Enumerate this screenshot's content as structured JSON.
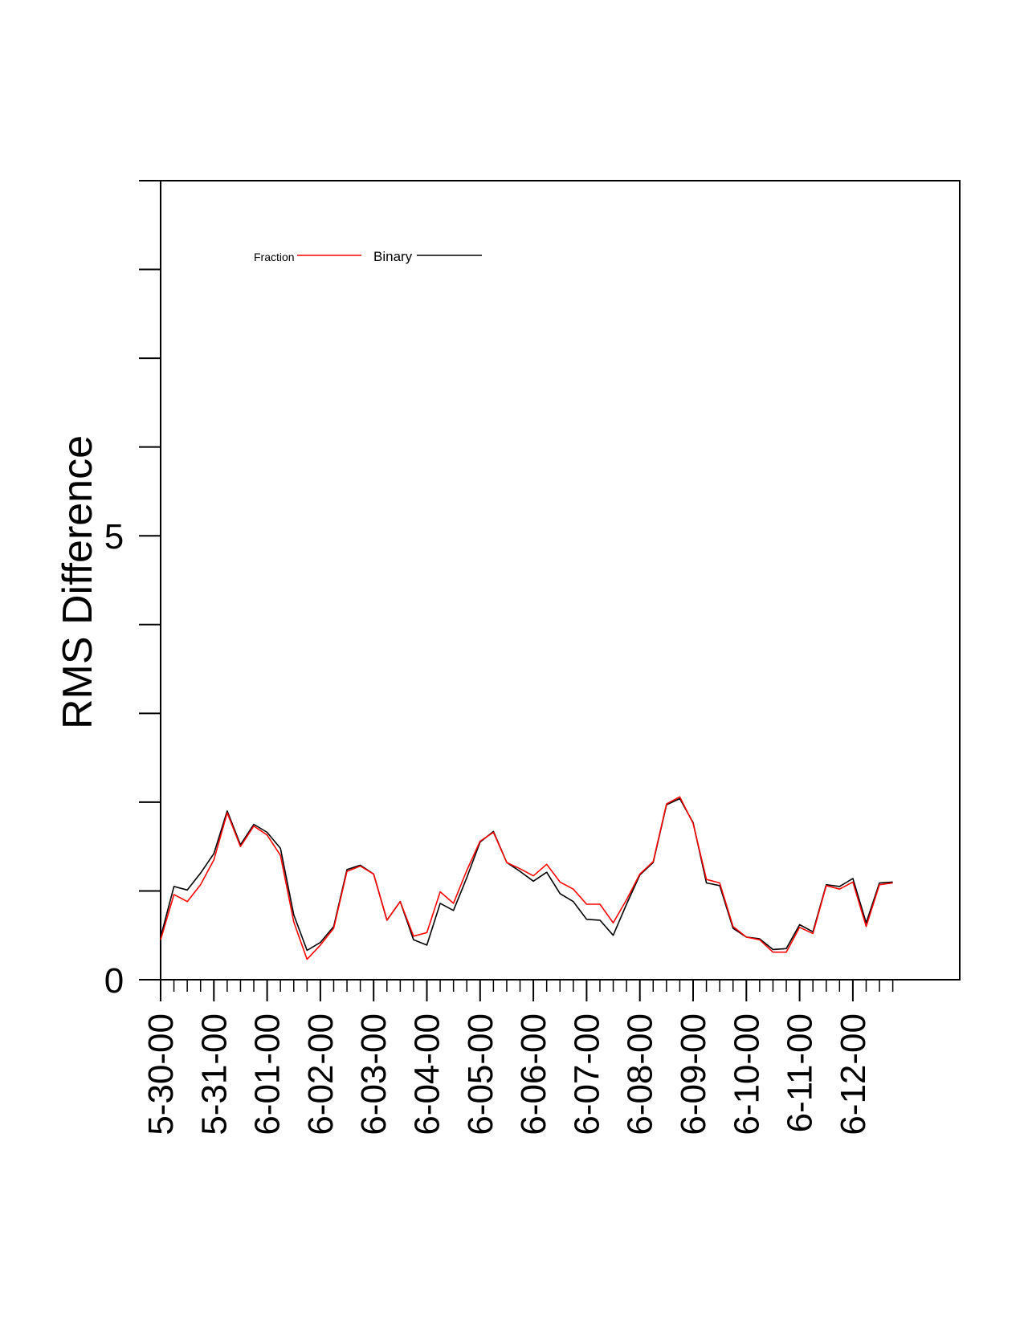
{
  "chart_data": {
    "type": "line",
    "ylabel": "RMS Difference",
    "ylim": [
      0,
      9
    ],
    "ytick_labels": [
      {
        "value": 0,
        "label": "0"
      },
      {
        "value": 5,
        "label": "5"
      }
    ],
    "x_tick_labels": [
      "5-30-00",
      "5-31-00",
      "6-01-00",
      "6-02-00",
      "6-03-00",
      "6-04-00",
      "6-05-00",
      "6-06-00",
      "6-07-00",
      "6-08-00",
      "6-09-00",
      "6-10-00",
      "6-11-00",
      "6-12-00"
    ],
    "points_per_day": 4,
    "legend": {
      "position": "top-left"
    },
    "series": [
      {
        "name": "Fraction",
        "color": "#ff0000",
        "values": [
          0.45,
          0.96,
          0.88,
          1.07,
          1.35,
          1.88,
          1.5,
          1.73,
          1.63,
          1.4,
          0.65,
          0.23,
          0.39,
          0.58,
          1.22,
          1.28,
          1.19,
          0.67,
          0.88,
          0.49,
          0.53,
          0.99,
          0.86,
          1.23,
          1.56,
          1.66,
          1.32,
          1.25,
          1.17,
          1.3,
          1.1,
          1.02,
          0.85,
          0.85,
          0.64,
          0.9,
          1.19,
          1.33,
          1.98,
          2.06,
          1.76,
          1.13,
          1.09,
          0.6,
          0.48,
          0.45,
          0.31,
          0.31,
          0.59,
          0.52,
          1.06,
          1.02,
          1.1,
          0.6,
          1.07,
          1.09
        ]
      },
      {
        "name": "Binary",
        "color": "#000000",
        "values": [
          0.48,
          1.05,
          1.01,
          1.2,
          1.42,
          1.9,
          1.52,
          1.75,
          1.66,
          1.48,
          0.73,
          0.33,
          0.42,
          0.6,
          1.24,
          1.29,
          1.19,
          0.67,
          0.88,
          0.45,
          0.39,
          0.86,
          0.78,
          1.15,
          1.55,
          1.67,
          1.32,
          1.22,
          1.11,
          1.21,
          0.97,
          0.88,
          0.68,
          0.67,
          0.5,
          0.85,
          1.18,
          1.32,
          1.97,
          2.04,
          1.77,
          1.09,
          1.06,
          0.58,
          0.48,
          0.46,
          0.34,
          0.35,
          0.62,
          0.54,
          1.07,
          1.05,
          1.14,
          0.64,
          1.09,
          1.1
        ]
      }
    ]
  }
}
